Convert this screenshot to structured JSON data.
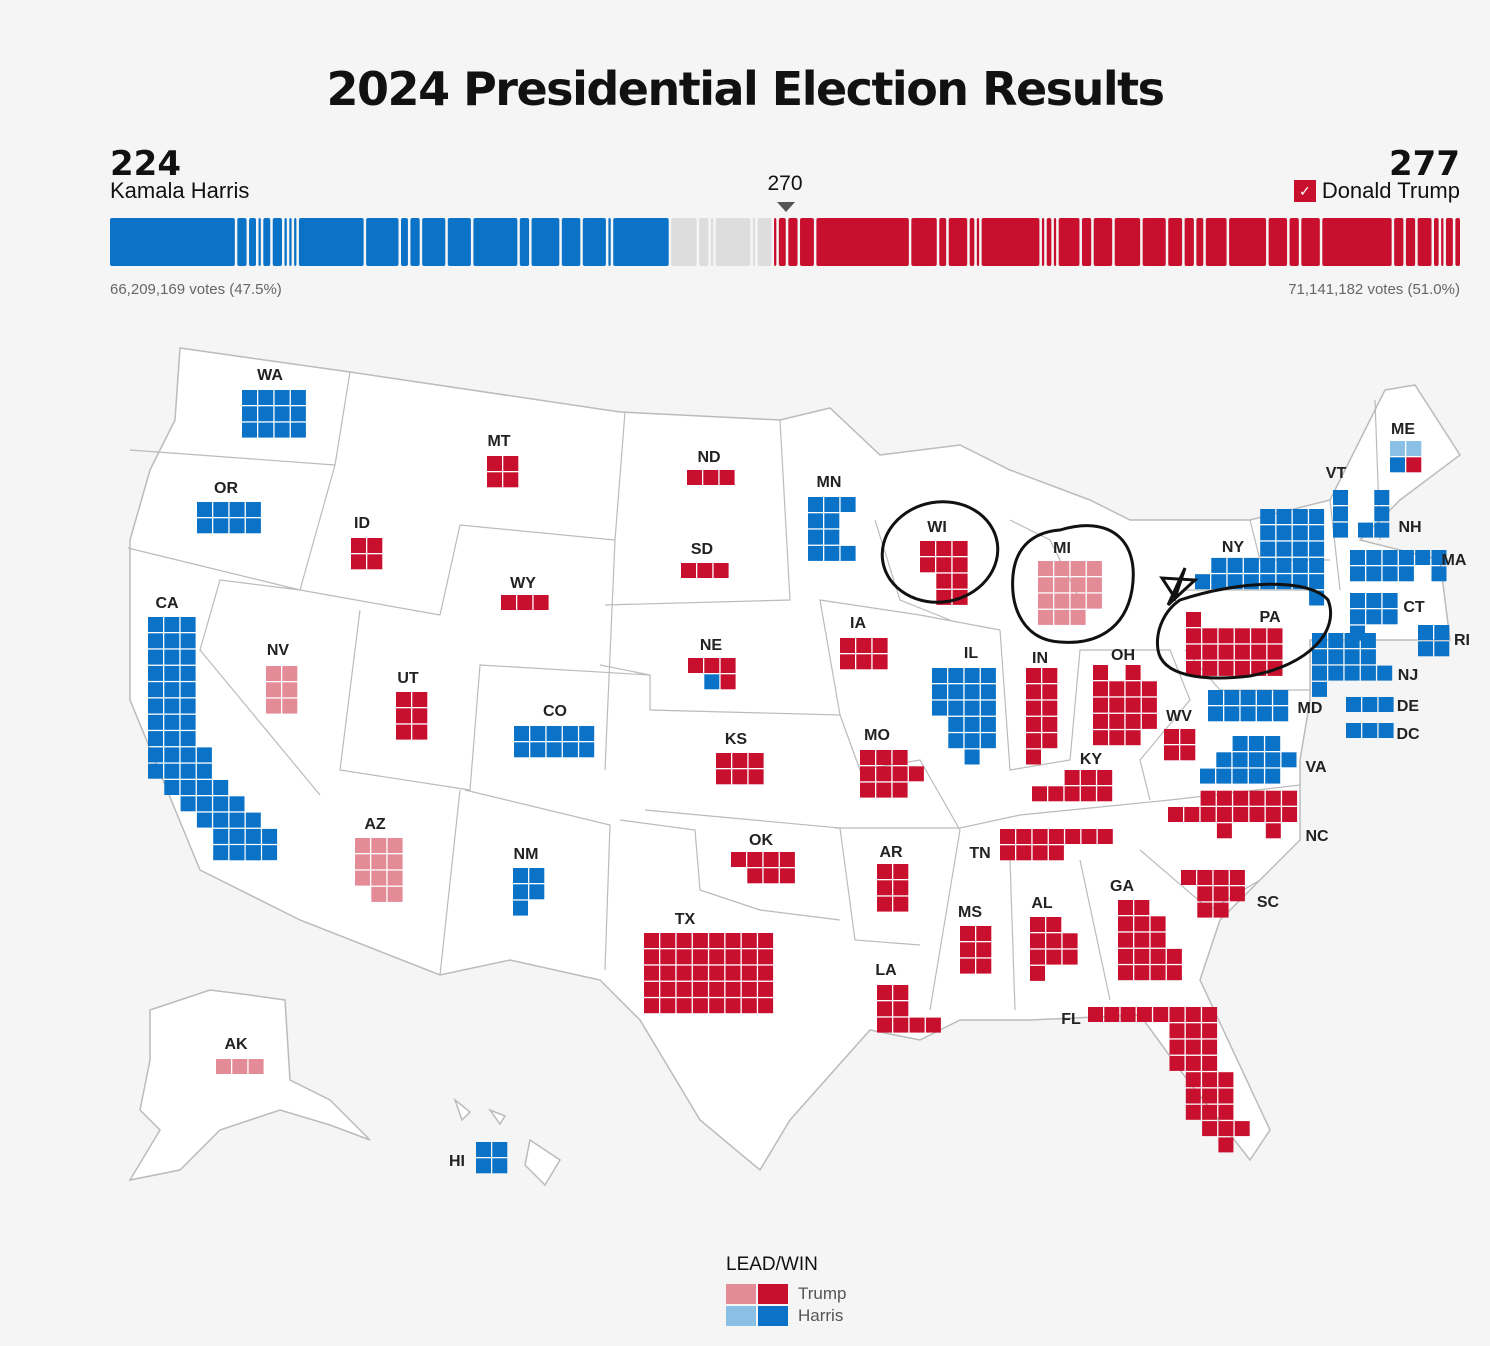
{
  "title": "2024 Presidential Election Results",
  "harris": {
    "electoral_votes": "224",
    "name": "Kamala Harris",
    "popular_votes": "66,209,169 votes (47.5%)"
  },
  "trump": {
    "electoral_votes": "277",
    "name": "Donald Trump",
    "popular_votes": "71,141,182 votes (51.0%)"
  },
  "threshold": "270",
  "colors": {
    "harris_win": "#0a73c8",
    "harris_lead": "#8ac0e6",
    "trump_win": "#c8102e",
    "trump_lead": "#e48b98",
    "undecided": "#dddddd"
  },
  "bar_segments": [
    {
      "party": "D",
      "ev": 54
    },
    {
      "party": "D",
      "ev": 4
    },
    {
      "party": "D",
      "ev": 3
    },
    {
      "party": "D",
      "ev": 1
    },
    {
      "party": "D",
      "ev": 3
    },
    {
      "party": "D",
      "ev": 4
    },
    {
      "party": "D",
      "ev": 1
    },
    {
      "party": "D",
      "ev": 1
    },
    {
      "party": "D",
      "ev": 1
    },
    {
      "party": "D",
      "ev": 28
    },
    {
      "party": "D",
      "ev": 14
    },
    {
      "party": "D",
      "ev": 3
    },
    {
      "party": "D",
      "ev": 4
    },
    {
      "party": "D",
      "ev": 10
    },
    {
      "party": "D",
      "ev": 10
    },
    {
      "party": "D",
      "ev": 19
    },
    {
      "party": "D",
      "ev": 4
    },
    {
      "party": "D",
      "ev": 12
    },
    {
      "party": "D",
      "ev": 8
    },
    {
      "party": "D",
      "ev": 10
    },
    {
      "party": "D",
      "ev": 1
    },
    {
      "party": "D",
      "ev": 24
    },
    {
      "party": "U",
      "ev": 11
    },
    {
      "party": "U",
      "ev": 4
    },
    {
      "party": "U",
      "ev": 1
    },
    {
      "party": "U",
      "ev": 15
    },
    {
      "party": "U",
      "ev": 1
    },
    {
      "party": "U",
      "ev": 6
    },
    {
      "party": "R",
      "ev": 1
    },
    {
      "party": "R",
      "ev": 3
    },
    {
      "party": "R",
      "ev": 4
    },
    {
      "party": "R",
      "ev": 6
    },
    {
      "party": "R",
      "ev": 40
    },
    {
      "party": "R",
      "ev": 11
    },
    {
      "party": "R",
      "ev": 3
    },
    {
      "party": "R",
      "ev": 8
    },
    {
      "party": "R",
      "ev": 2
    },
    {
      "party": "R",
      "ev": 1
    },
    {
      "party": "R",
      "ev": 25
    },
    {
      "party": "R",
      "ev": 1
    },
    {
      "party": "R",
      "ev": 2
    },
    {
      "party": "R",
      "ev": 1
    },
    {
      "party": "R",
      "ev": 9
    },
    {
      "party": "R",
      "ev": 4
    },
    {
      "party": "R",
      "ev": 8
    },
    {
      "party": "R",
      "ev": 11
    },
    {
      "party": "R",
      "ev": 10
    },
    {
      "party": "R",
      "ev": 6
    },
    {
      "party": "R",
      "ev": 4
    },
    {
      "party": "R",
      "ev": 3
    },
    {
      "party": "R",
      "ev": 9
    },
    {
      "party": "R",
      "ev": 16
    },
    {
      "party": "R",
      "ev": 8
    },
    {
      "party": "R",
      "ev": 4
    },
    {
      "party": "R",
      "ev": 8
    },
    {
      "party": "R",
      "ev": 30
    },
    {
      "party": "R",
      "ev": 4
    },
    {
      "party": "R",
      "ev": 4
    },
    {
      "party": "R",
      "ev": 6
    },
    {
      "party": "R",
      "ev": 2
    },
    {
      "party": "R",
      "ev": 1
    },
    {
      "party": "R",
      "ev": 3
    },
    {
      "party": "R",
      "ev": 2
    }
  ],
  "states": [
    {
      "abbr": "WA",
      "ev": 12,
      "status": "harris_win"
    },
    {
      "abbr": "OR",
      "ev": 8,
      "status": "harris_win"
    },
    {
      "abbr": "CA",
      "ev": 54,
      "status": "harris_win"
    },
    {
      "abbr": "NV",
      "ev": 6,
      "status": "trump_lead"
    },
    {
      "abbr": "ID",
      "ev": 4,
      "status": "trump_win"
    },
    {
      "abbr": "MT",
      "ev": 4,
      "status": "trump_win"
    },
    {
      "abbr": "WY",
      "ev": 3,
      "status": "trump_win"
    },
    {
      "abbr": "UT",
      "ev": 6,
      "status": "trump_win"
    },
    {
      "abbr": "AZ",
      "ev": 11,
      "status": "trump_lead"
    },
    {
      "abbr": "CO",
      "ev": 10,
      "status": "harris_win"
    },
    {
      "abbr": "NM",
      "ev": 5,
      "status": "harris_win"
    },
    {
      "abbr": "ND",
      "ev": 3,
      "status": "trump_win"
    },
    {
      "abbr": "SD",
      "ev": 3,
      "status": "trump_win"
    },
    {
      "abbr": "NE",
      "ev": 5,
      "status": "trump_win",
      "note": "1 district Harris"
    },
    {
      "abbr": "KS",
      "ev": 6,
      "status": "trump_win"
    },
    {
      "abbr": "OK",
      "ev": 7,
      "status": "trump_win"
    },
    {
      "abbr": "TX",
      "ev": 40,
      "status": "trump_win"
    },
    {
      "abbr": "MN",
      "ev": 10,
      "status": "harris_win"
    },
    {
      "abbr": "IA",
      "ev": 6,
      "status": "trump_win"
    },
    {
      "abbr": "MO",
      "ev": 10,
      "status": "trump_win"
    },
    {
      "abbr": "AR",
      "ev": 6,
      "status": "trump_win"
    },
    {
      "abbr": "LA",
      "ev": 8,
      "status": "trump_win"
    },
    {
      "abbr": "WI",
      "ev": 10,
      "status": "trump_win"
    },
    {
      "abbr": "IL",
      "ev": 19,
      "status": "harris_win"
    },
    {
      "abbr": "MI",
      "ev": 15,
      "status": "trump_lead"
    },
    {
      "abbr": "IN",
      "ev": 11,
      "status": "trump_win"
    },
    {
      "abbr": "OH",
      "ev": 17,
      "status": "trump_win"
    },
    {
      "abbr": "KY",
      "ev": 8,
      "status": "trump_win"
    },
    {
      "abbr": "TN",
      "ev": 11,
      "status": "trump_win"
    },
    {
      "abbr": "MS",
      "ev": 6,
      "status": "trump_win"
    },
    {
      "abbr": "AL",
      "ev": 9,
      "status": "trump_win"
    },
    {
      "abbr": "GA",
      "ev": 16,
      "status": "trump_win"
    },
    {
      "abbr": "FL",
      "ev": 30,
      "status": "trump_win"
    },
    {
      "abbr": "SC",
      "ev": 9,
      "status": "trump_win"
    },
    {
      "abbr": "NC",
      "ev": 16,
      "status": "trump_win"
    },
    {
      "abbr": "WV",
      "ev": 4,
      "status": "trump_win"
    },
    {
      "abbr": "VA",
      "ev": 13,
      "status": "harris_win"
    },
    {
      "abbr": "MD",
      "ev": 10,
      "status": "harris_win"
    },
    {
      "abbr": "DE",
      "ev": 3,
      "status": "harris_win"
    },
    {
      "abbr": "DC",
      "ev": 3,
      "status": "harris_win"
    },
    {
      "abbr": "PA",
      "ev": 19,
      "status": "trump_win"
    },
    {
      "abbr": "NY",
      "ev": 28,
      "status": "harris_win"
    },
    {
      "abbr": "NJ",
      "ev": 14,
      "status": "harris_win"
    },
    {
      "abbr": "CT",
      "ev": 7,
      "status": "harris_win"
    },
    {
      "abbr": "RI",
      "ev": 4,
      "status": "harris_win"
    },
    {
      "abbr": "MA",
      "ev": 11,
      "status": "harris_win"
    },
    {
      "abbr": "VT",
      "ev": 3,
      "status": "harris_win"
    },
    {
      "abbr": "NH",
      "ev": 4,
      "status": "harris_win"
    },
    {
      "abbr": "ME",
      "ev": 4,
      "status": "harris_win",
      "note": "2 Harris lead, 1 Harris win, 1 Trump win"
    },
    {
      "abbr": "AK",
      "ev": 3,
      "status": "trump_lead"
    },
    {
      "abbr": "HI",
      "ev": 4,
      "status": "harris_win"
    }
  ],
  "annotations": {
    "circled_states": [
      "WI",
      "MI",
      "PA"
    ],
    "star_mark": "hand-drawn star near PA"
  },
  "legend": {
    "title": "LEAD/WIN",
    "trump_label": "Trump",
    "harris_label": "Harris"
  }
}
